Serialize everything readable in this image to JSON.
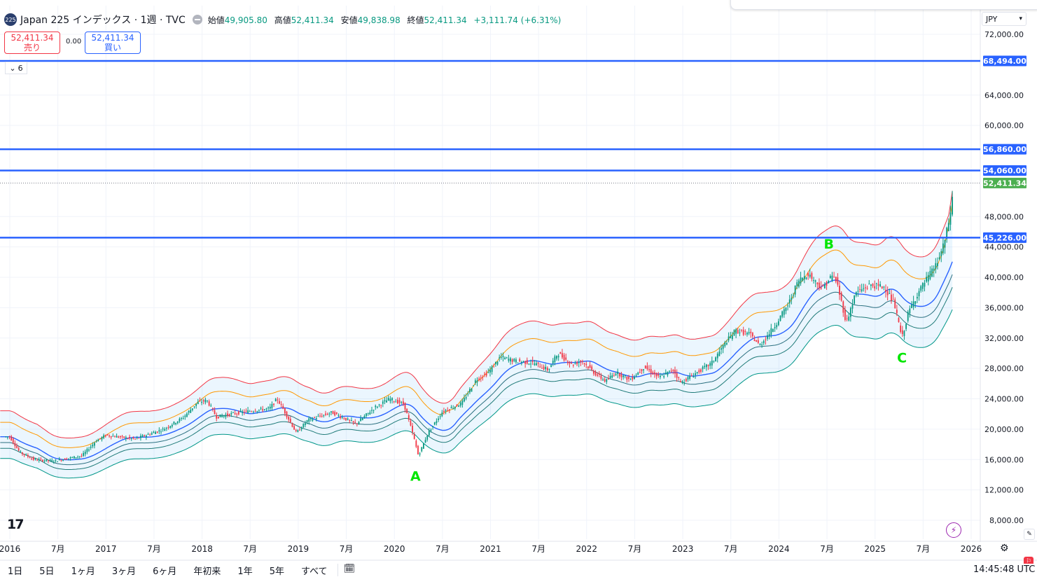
{
  "header": {
    "symbol_badge": "225",
    "title": "Japan 225 インデックス · 1週 · TVC",
    "ohlc": {
      "open_label": "始値",
      "open": "49,905.80",
      "high_label": "高値",
      "high": "52,411.34",
      "low_label": "安値",
      "low": "49,838.98",
      "close_label": "終値",
      "close": "52,411.34",
      "change": "+3,111.74 (+6.31%)"
    }
  },
  "trade": {
    "sell_price": "52,411.34",
    "sell_label": "売り",
    "spread": "0.00",
    "buy_price": "52,411.34",
    "buy_label": "買い"
  },
  "indicators_toggle": {
    "count": "6"
  },
  "currency": "JPY",
  "bottom_bar": {
    "ranges": [
      "1日",
      "5日",
      "1ヶ月",
      "3ヶ月",
      "6ヶ月",
      "年初来",
      "1年",
      "5年",
      "すべて"
    ],
    "clock": "14:45:48 UTC"
  },
  "colors": {
    "hline": "#2962ff",
    "candle_up": "#089981",
    "candle_down": "#f23645",
    "band_upper": "#f23645",
    "band_mid_upper": "#ff9800",
    "band_mid": "#2962ff",
    "band_lower": "#009688",
    "label_green": "#00e600",
    "last_price": "#4caf50"
  },
  "chart_data": {
    "type": "candlestick",
    "title": "Japan 225 インデックス · 1週 · TVC",
    "y_axis": {
      "ticks": [
        8000,
        12000,
        16000,
        20000,
        24000,
        28000,
        32000,
        36000,
        40000,
        44000,
        48000,
        60000,
        64000,
        72000
      ],
      "tick_labels": [
        "8,000.00",
        "12,000.00",
        "16,000.00",
        "20,000.00",
        "24,000.00",
        "28,000.00",
        "32,000.00",
        "36,000.00",
        "40,000.00",
        "44,000.00",
        "48,000.00",
        "60,000.00",
        "64,000.00",
        "72,000.00"
      ],
      "range": [
        6000,
        76000
      ]
    },
    "x_axis": {
      "ticks": [
        2016.0,
        2016.5,
        2017.0,
        2017.5,
        2018.0,
        2018.5,
        2019.0,
        2019.5,
        2020.0,
        2020.5,
        2021.0,
        2021.5,
        2022.0,
        2022.5,
        2023.0,
        2023.5,
        2024.0,
        2024.5,
        2025.0,
        2025.5,
        2026.0
      ],
      "tick_labels": [
        "2016",
        "7月",
        "2017",
        "7月",
        "2018",
        "7月",
        "2019",
        "7月",
        "2020",
        "7月",
        "2021",
        "7月",
        "2022",
        "7月",
        "2023",
        "7月",
        "2024",
        "7月",
        "2025",
        "7月",
        "2026"
      ],
      "range": [
        2016.0,
        2026.0
      ]
    },
    "horizontal_lines": [
      {
        "value": 68494,
        "label": "68,494.00"
      },
      {
        "value": 56860,
        "label": "56,860.00"
      },
      {
        "value": 54060,
        "label": "54,060.00"
      },
      {
        "value": 45226,
        "label": "45,226.00"
      }
    ],
    "last_price": {
      "value": 52411.34,
      "label": "52,411.34"
    },
    "series_path": [
      [
        2016.0,
        19000
      ],
      [
        2016.1,
        17000
      ],
      [
        2016.25,
        16000
      ],
      [
        2016.45,
        15800
      ],
      [
        2016.75,
        16500
      ],
      [
        2016.9,
        18500
      ],
      [
        2017.0,
        19200
      ],
      [
        2017.3,
        18700
      ],
      [
        2017.6,
        20000
      ],
      [
        2017.8,
        21500
      ],
      [
        2017.95,
        23500
      ],
      [
        2018.05,
        23800
      ],
      [
        2018.15,
        21600
      ],
      [
        2018.3,
        22000
      ],
      [
        2018.55,
        22500
      ],
      [
        2018.7,
        22700
      ],
      [
        2018.78,
        24000
      ],
      [
        2018.85,
        22500
      ],
      [
        2018.98,
        19500
      ],
      [
        2019.1,
        21200
      ],
      [
        2019.35,
        22200
      ],
      [
        2019.6,
        20700
      ],
      [
        2019.8,
        22900
      ],
      [
        2019.95,
        24000
      ],
      [
        2020.1,
        23300
      ],
      [
        2020.2,
        19000
      ],
      [
        2020.25,
        16500
      ],
      [
        2020.35,
        19500
      ],
      [
        2020.5,
        22300
      ],
      [
        2020.7,
        23400
      ],
      [
        2020.85,
        26500
      ],
      [
        2020.98,
        27500
      ],
      [
        2021.1,
        29500
      ],
      [
        2021.25,
        29000
      ],
      [
        2021.45,
        28700
      ],
      [
        2021.6,
        27800
      ],
      [
        2021.7,
        30000
      ],
      [
        2021.85,
        28500
      ],
      [
        2021.95,
        29000
      ],
      [
        2022.1,
        27200
      ],
      [
        2022.2,
        26300
      ],
      [
        2022.3,
        27500
      ],
      [
        2022.45,
        26500
      ],
      [
        2022.6,
        28200
      ],
      [
        2022.75,
        26800
      ],
      [
        2022.9,
        27800
      ],
      [
        2022.98,
        26100
      ],
      [
        2023.15,
        27500
      ],
      [
        2023.3,
        28700
      ],
      [
        2023.45,
        31500
      ],
      [
        2023.55,
        33000
      ],
      [
        2023.7,
        32500
      ],
      [
        2023.8,
        31000
      ],
      [
        2023.95,
        33500
      ],
      [
        2024.1,
        36500
      ],
      [
        2024.2,
        39500
      ],
      [
        2024.3,
        40500
      ],
      [
        2024.45,
        38500
      ],
      [
        2024.55,
        40200
      ],
      [
        2024.6,
        39500
      ],
      [
        2024.7,
        34000
      ],
      [
        2024.8,
        38000
      ],
      [
        2024.95,
        39000
      ],
      [
        2025.1,
        38700
      ],
      [
        2025.2,
        36500
      ],
      [
        2025.28,
        32000
      ],
      [
        2025.35,
        35500
      ],
      [
        2025.45,
        38000
      ],
      [
        2025.55,
        40000
      ],
      [
        2025.65,
        42000
      ],
      [
        2025.72,
        44500
      ],
      [
        2025.77,
        47500
      ],
      [
        2025.8,
        49900
      ],
      [
        2025.82,
        52411
      ]
    ],
    "annotations": [
      {
        "text": "A",
        "x": 2020.22,
        "y": 13200
      },
      {
        "text": "B",
        "x": 2024.52,
        "y": 43800
      },
      {
        "text": "C",
        "x": 2025.28,
        "y": 28800
      }
    ],
    "bollinger": {
      "upper_offset": 1.18,
      "upper2_offset": 1.1,
      "mid_offset": 1.0,
      "lower2_offset": 0.92,
      "lower_offset": 0.85
    },
    "grid": true
  }
}
